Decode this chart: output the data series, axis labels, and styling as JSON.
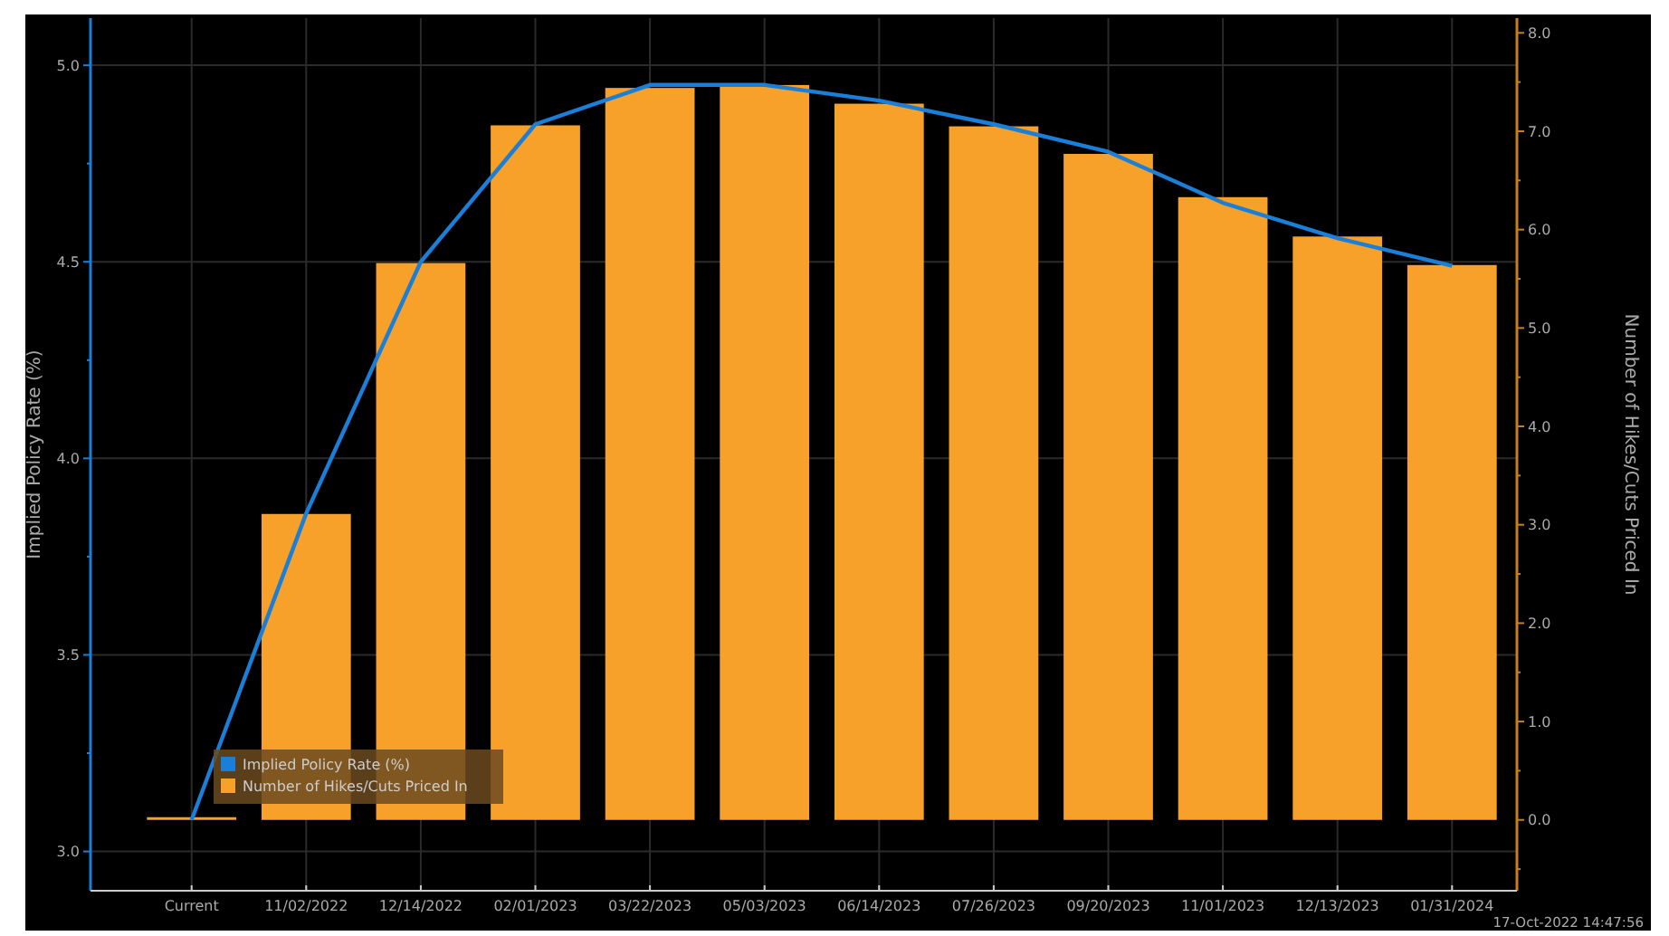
{
  "chart_data": {
    "type": "bar",
    "ylabel": "Implied Policy Rate (%)",
    "y2label": "Number of Hikes/Cuts Priced In",
    "categories": [
      "Current",
      "11/02/2022",
      "12/14/2022",
      "02/01/2023",
      "03/22/2023",
      "05/03/2023",
      "06/14/2023",
      "07/26/2023",
      "09/20/2023",
      "11/01/2023",
      "12/13/2023",
      "01/31/2024"
    ],
    "series": [
      {
        "name": "Number of Hikes/Cuts Priced In",
        "axis": "y2",
        "color": "#f7a12b",
        "values": [
          0,
          3.11,
          5.66,
          7.06,
          7.44,
          7.47,
          7.28,
          7.05,
          6.77,
          6.33,
          5.93,
          5.64
        ]
      },
      {
        "name": "Implied Policy Rate (%)",
        "type": "line",
        "axis": "y",
        "color": "#1a7fd8",
        "values": [
          3.08,
          3.86,
          4.5,
          4.85,
          4.95,
          4.95,
          4.91,
          4.85,
          4.78,
          4.65,
          4.56,
          4.49
        ]
      }
    ],
    "ylim": [
      2.9,
      5.12
    ],
    "yticks": [
      {
        "value": 3,
        "label": "3.0"
      },
      {
        "value": 3.25,
        "label": null
      },
      {
        "value": 3.5,
        "label": "3.5"
      },
      {
        "value": 3.75,
        "label": null
      },
      {
        "value": 4,
        "label": "4.0"
      },
      {
        "value": 4.25,
        "label": null
      },
      {
        "value": 4.5,
        "label": "4.5"
      },
      {
        "value": 4.75,
        "label": null
      },
      {
        "value": 5,
        "label": "5.0"
      }
    ],
    "y2lim": [
      -0.72,
      8.15
    ],
    "y2ticks": [
      {
        "value": -0.5,
        "label": null
      },
      {
        "value": 0,
        "label": "0.0"
      },
      {
        "value": 0.5,
        "label": null
      },
      {
        "value": 1,
        "label": "1.0"
      },
      {
        "value": 1.5,
        "label": null
      },
      {
        "value": 2,
        "label": "2.0"
      },
      {
        "value": 2.5,
        "label": null
      },
      {
        "value": 3,
        "label": "3.0"
      },
      {
        "value": 3.5,
        "label": null
      },
      {
        "value": 4,
        "label": "4.0"
      },
      {
        "value": 4.5,
        "label": null
      },
      {
        "value": 5,
        "label": "5.0"
      },
      {
        "value": 5.5,
        "label": null
      },
      {
        "value": 6,
        "label": "6.0"
      },
      {
        "value": 6.5,
        "label": null
      },
      {
        "value": 7,
        "label": "7.0"
      },
      {
        "value": 7.5,
        "label": null
      },
      {
        "value": 8,
        "label": "8.0"
      }
    ],
    "grid": true,
    "legend": "bottom left",
    "marker": "none",
    "line_style": "solid",
    "annotations": [
      "17-Oct-2022 14:47:56"
    ]
  }
}
